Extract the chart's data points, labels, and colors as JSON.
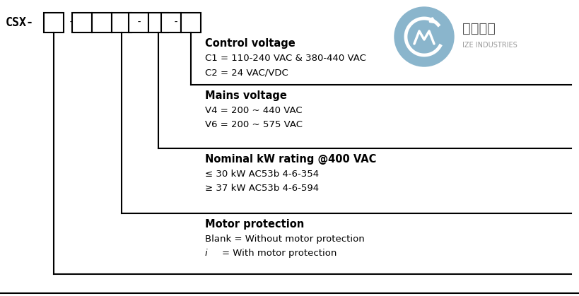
{
  "bg_color": "#ffffff",
  "blue_color": "#8ab5cc",
  "gray_text": "#666666",
  "light_gray": "#999999",
  "csx_label": "CSX-",
  "sections": [
    {
      "title": "Control voltage",
      "line1": "C1 = 110-240 VAC & 380-440 VAC",
      "line2": "C2 = 24 VAC/VDC"
    },
    {
      "title": "Mains voltage",
      "line1": "V4 = 200 ~ 440 VAC",
      "line2": "V6 = 200 ~ 575 VAC"
    },
    {
      "title": "Nominal kW rating @400 VAC",
      "line1": "≤ 30 kW AC53b 4-6-354",
      "line2": "≥ 37 kW AC53b 4-6-594"
    },
    {
      "title": "Motor protection",
      "line1": "Blank = Without motor protection",
      "line2_italic": "i",
      "line2_normal": "= With motor protection"
    }
  ]
}
